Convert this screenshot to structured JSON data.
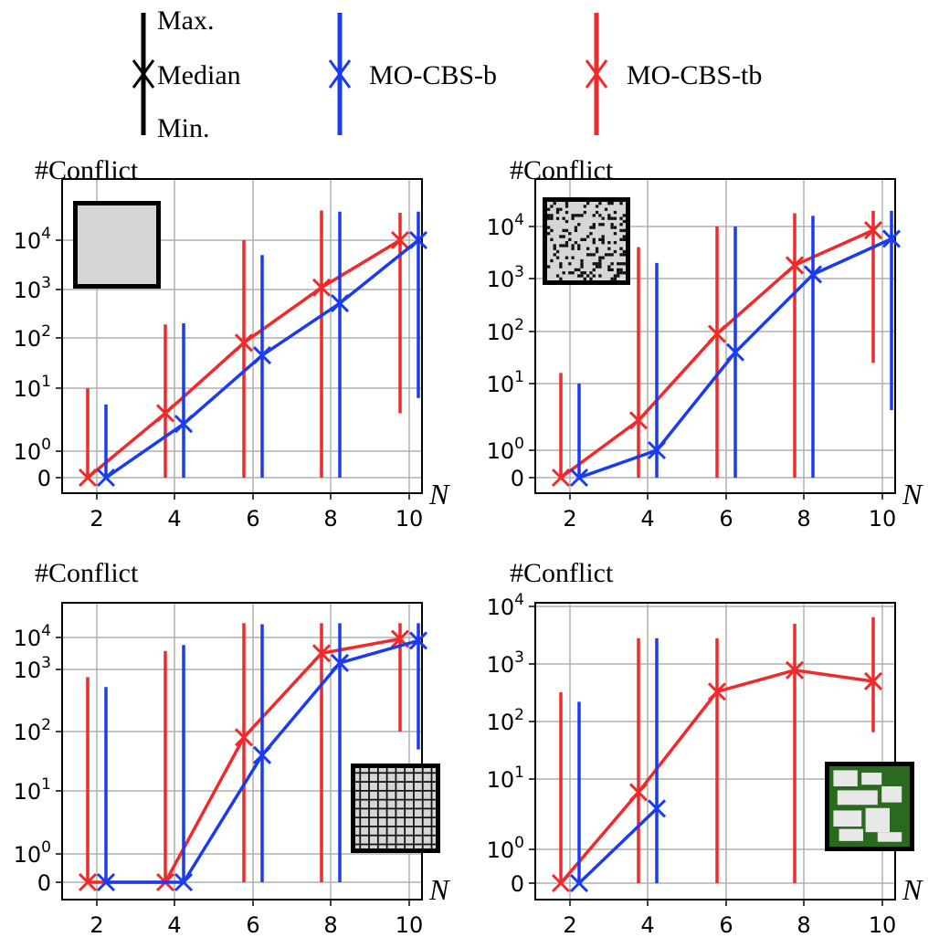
{
  "legend": {
    "max_label": "Max.",
    "median_label": "Median",
    "min_label": "Min.",
    "series_b": "MO-CBS-b",
    "series_tb": "MO-CBS-tb"
  },
  "colors": {
    "black": "#000000",
    "blue": "#1a3cf0",
    "red": "#f02a2a",
    "grid": "#b0b0b0",
    "map_green": "#2a6a1e",
    "map_gray": "#d6d6d6"
  },
  "chart_data": [
    {
      "id": "top-left",
      "type": "line",
      "title": "#Conflict",
      "xlabel": "N",
      "ylabel": "#Conflict",
      "x_ticks": [
        "2",
        "4",
        "6",
        "8",
        "10"
      ],
      "y_ticks": [
        "0",
        "10^0",
        "10^1",
        "10^2",
        "10^3",
        "10^4"
      ],
      "map": "empty",
      "series": [
        {
          "name": "MO-CBS-tb",
          "x": [
            2,
            4,
            6,
            8,
            10
          ],
          "median": [
            0,
            4,
            80,
            1100,
            10000
          ],
          "min": [
            0,
            0,
            0,
            0,
            4
          ],
          "max": [
            10,
            190,
            10000,
            40000,
            36000
          ]
        },
        {
          "name": "MO-CBS-b",
          "x": [
            2,
            4,
            6,
            8,
            10
          ],
          "median": [
            0,
            2.7,
            45,
            520,
            10000
          ],
          "min": [
            0,
            0,
            0,
            0,
            7
          ],
          "max": [
            5.5,
            200,
            5000,
            38000,
            38000
          ]
        }
      ]
    },
    {
      "id": "top-right",
      "type": "line",
      "title": "#Conflict",
      "xlabel": "N",
      "ylabel": "#Conflict",
      "x_ticks": [
        "2",
        "4",
        "6",
        "8",
        "10"
      ],
      "y_ticks": [
        "0",
        "10^0",
        "10^1",
        "10^2",
        "10^3",
        "10^4"
      ],
      "map": "random",
      "series": [
        {
          "name": "MO-CBS-tb",
          "x": [
            2,
            4,
            6,
            8,
            10
          ],
          "median": [
            0,
            2.8,
            90,
            1800,
            8500
          ],
          "min": [
            0,
            0,
            0,
            0,
            25
          ],
          "max": [
            16,
            4000,
            10000,
            18000,
            20000
          ]
        },
        {
          "name": "MO-CBS-b",
          "x": [
            2,
            4,
            6,
            8,
            10
          ],
          "median": [
            0,
            1,
            40,
            1200,
            5800
          ],
          "min": [
            0,
            0,
            0,
            0,
            4
          ],
          "max": [
            10,
            2000,
            10000,
            16000,
            20000
          ]
        }
      ]
    },
    {
      "id": "bottom-left",
      "type": "line",
      "title": "#Conflict",
      "xlabel": "N",
      "ylabel": "#Conflict",
      "x_ticks": [
        "2",
        "4",
        "6",
        "8",
        "10"
      ],
      "y_ticks": [
        "0",
        "10^0",
        "10^1",
        "10^2",
        "10^3",
        "10^4"
      ],
      "map": "maze",
      "series": [
        {
          "name": "MO-CBS-tb",
          "x": [
            2,
            4,
            6,
            8,
            10
          ],
          "median": [
            0,
            0,
            80,
            3200,
            9000
          ],
          "min": [
            0,
            0,
            0,
            0,
            100
          ],
          "max": [
            750,
            3800,
            28000,
            28000,
            28000
          ]
        },
        {
          "name": "MO-CBS-b",
          "x": [
            2,
            4,
            6,
            8,
            10
          ],
          "median": [
            0,
            0,
            40,
            1600,
            8000
          ],
          "min": [
            0,
            0,
            0,
            0,
            50
          ],
          "max": [
            520,
            5800,
            26000,
            28000,
            28000
          ]
        }
      ]
    },
    {
      "id": "bottom-right",
      "type": "line",
      "title": "#Conflict",
      "xlabel": "N",
      "ylabel": "#Conflict",
      "x_ticks": [
        "2",
        "4",
        "6",
        "8",
        "10"
      ],
      "y_ticks": [
        "0",
        "10^0",
        "10^1",
        "10^2",
        "10^3",
        "10^4"
      ],
      "map": "game",
      "series": [
        {
          "name": "MO-CBS-tb",
          "x": [
            2,
            4,
            6,
            8,
            10
          ],
          "median": [
            0,
            6.5,
            330,
            780,
            500
          ],
          "min": [
            0,
            0,
            0,
            0,
            65
          ],
          "max": [
            320,
            2800,
            2800,
            5000,
            6500
          ]
        },
        {
          "name": "MO-CBS-b",
          "x": [
            2,
            4
          ],
          "median": [
            0,
            3.8
          ],
          "min": [
            0,
            0
          ],
          "max": [
            220,
            2800
          ]
        }
      ]
    }
  ]
}
